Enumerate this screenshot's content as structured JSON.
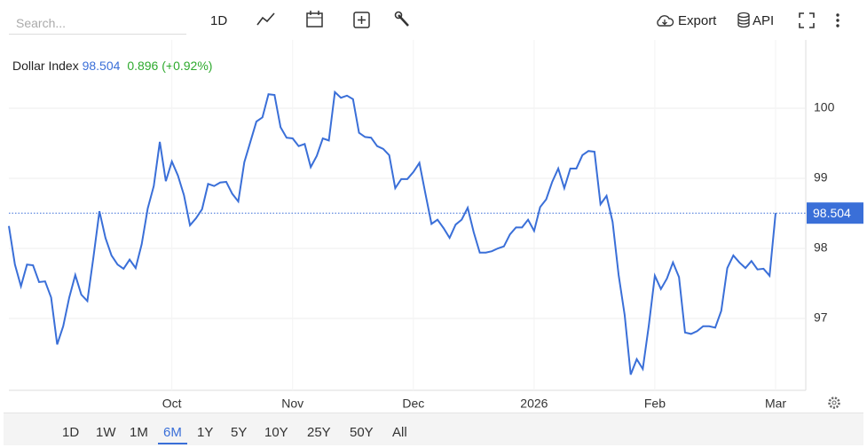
{
  "toolbar": {
    "search_placeholder": "Search...",
    "interval": "1D",
    "export": "Export",
    "api": "API"
  },
  "range_buttons": [
    "1D",
    "1W",
    "1M",
    "6M",
    "1Y",
    "5Y",
    "10Y",
    "25Y",
    "50Y",
    "All"
  ],
  "selected_range": "6M",
  "change": "0.896 (+0.92%)",
  "chart_data": {
    "type": "line",
    "categories": [
      null,
      null,
      null,
      null,
      null,
      null,
      null,
      null,
      null,
      null,
      null,
      null,
      null,
      null,
      null,
      null,
      null,
      null,
      null,
      null,
      null,
      null,
      null,
      null,
      null,
      null,
      null,
      "Oct",
      null,
      null,
      null,
      null,
      null,
      null,
      null,
      null,
      null,
      null,
      null,
      null,
      null,
      null,
      null,
      null,
      null,
      null,
      null,
      "Nov",
      null,
      null,
      null,
      null,
      null,
      null,
      null,
      null,
      null,
      null,
      null,
      null,
      null,
      null,
      null,
      null,
      null,
      null,
      null,
      "Dec",
      null,
      null,
      null,
      null,
      null,
      null,
      null,
      null,
      null,
      null,
      null,
      null,
      null,
      null,
      null,
      null,
      null,
      null,
      null,
      "2026",
      null,
      null,
      null,
      null,
      null,
      null,
      null,
      null,
      null,
      null,
      null,
      null,
      null,
      null,
      null,
      null,
      null,
      null,
      null,
      "Feb",
      null,
      null,
      null,
      null,
      null,
      null,
      null,
      null,
      null,
      null,
      null,
      null,
      null,
      null,
      null,
      null,
      null,
      null,
      null,
      "Mar"
    ],
    "series": [
      {
        "name": "Dollar Index",
        "color": "#3a6fd8",
        "values": [
          98.32,
          97.77,
          97.46,
          97.77,
          97.76,
          97.52,
          97.53,
          97.3,
          96.63,
          96.89,
          97.3,
          97.62,
          97.34,
          97.25,
          97.87,
          98.53,
          98.15,
          97.9,
          97.77,
          97.71,
          97.84,
          97.72,
          98.06,
          98.57,
          98.89,
          99.52,
          98.96,
          99.24,
          99.04,
          98.76,
          98.33,
          98.43,
          98.56,
          98.92,
          98.89,
          98.94,
          98.95,
          98.78,
          98.67,
          99.23,
          99.52,
          99.81,
          99.87,
          100.2,
          100.19,
          99.73,
          99.58,
          99.57,
          99.46,
          99.49,
          99.16,
          99.32,
          99.57,
          99.54,
          100.23,
          100.15,
          100.18,
          100.13,
          99.65,
          99.59,
          99.58,
          99.46,
          99.42,
          99.33,
          98.86,
          98.99,
          98.99,
          99.09,
          99.22,
          98.78,
          98.35,
          98.41,
          98.29,
          98.15,
          98.34,
          98.41,
          98.58,
          98.23,
          97.94,
          97.94,
          97.96,
          98.0,
          98.03,
          98.2,
          98.3,
          98.3,
          98.41,
          98.25,
          98.59,
          98.7,
          98.95,
          99.14,
          98.86,
          99.14,
          99.14,
          99.33,
          99.39,
          99.38,
          98.63,
          98.75,
          98.38,
          97.62,
          97.05,
          96.2,
          96.42,
          96.28,
          96.9,
          97.61,
          97.42,
          97.57,
          97.8,
          97.59,
          96.8,
          96.78,
          96.82,
          96.89,
          96.89,
          96.87,
          97.11,
          97.72,
          97.9,
          97.8,
          97.72,
          97.82,
          97.7,
          97.71,
          97.61,
          98.504
        ]
      }
    ],
    "ylim": [
      95.975,
      100.975
    ],
    "yticks": [
      97,
      98,
      99,
      100
    ],
    "grid": true
  }
}
